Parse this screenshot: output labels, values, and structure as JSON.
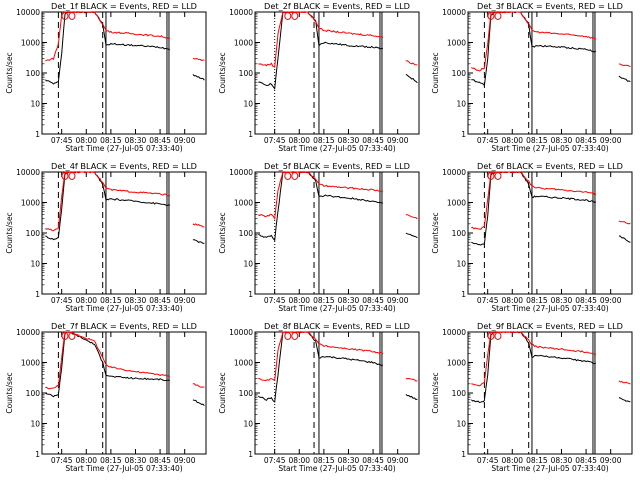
{
  "common": {
    "xlabel": "Start Time (27-Jul-05 07:33:40)",
    "ylabel": "Counts/sec",
    "xticks": [
      "07:45",
      "08:00",
      "08:15",
      "08:30",
      "08:45",
      "09:00"
    ],
    "yticks": [
      "10000",
      "1000",
      "100",
      "10",
      "1"
    ],
    "colors": {
      "events": "#000000",
      "lld": "#ff0000",
      "axes": "#000000"
    }
  },
  "panels": [
    {
      "title": "Det_1f BLACK = Events, RED = LLD"
    },
    {
      "title": "Det_2f BLACK = Events, RED = LLD"
    },
    {
      "title": "Det_3f BLACK = Events, RED = LLD"
    },
    {
      "title": "Det_4f BLACK = Events, RED = LLD"
    },
    {
      "title": "Det_5f BLACK = Events, RED = LLD"
    },
    {
      "title": "Det_6f BLACK = Events, RED = LLD"
    },
    {
      "title": "Det_7f BLACK = Events, RED = LLD"
    },
    {
      "title": "Det_8f BLACK = Events, RED = LLD"
    },
    {
      "title": "Det_9f BLACK = Events, RED = LLD"
    }
  ],
  "chart_data": [
    {
      "type": "line",
      "title": "Det_1f BLACK = Events, RED = LLD",
      "xlabel": "Start Time (27-Jul-05 07:33:40)",
      "ylabel": "Counts/sec",
      "yscale": "log",
      "ylim": [
        1,
        10000
      ],
      "xlim": [
        "07:33",
        "09:13"
      ],
      "series": [
        {
          "name": "Events",
          "color": "#000000",
          "x": [
            "07:35",
            "07:40",
            "07:43",
            "07:45",
            "07:47",
            "07:50",
            "08:05",
            "08:10",
            "08:12",
            "08:15",
            "08:30",
            "08:45",
            "08:51",
            "08:57",
            "09:05",
            "09:12"
          ],
          "values": [
            60,
            45,
            50,
            450,
            9000,
            10000,
            10000,
            4000,
            800,
            900,
            800,
            700,
            600,
            null,
            90,
            60
          ]
        },
        {
          "name": "LLD",
          "color": "#ff0000",
          "x": [
            "07:35",
            "07:40",
            "07:43",
            "07:45",
            "07:47",
            "07:50",
            "08:05",
            "08:10",
            "08:12",
            "08:15",
            "08:30",
            "08:45",
            "08:51",
            "08:57",
            "09:05",
            "09:12"
          ],
          "values": [
            250,
            300,
            900,
            8000,
            10000,
            10000,
            10000,
            4000,
            2500,
            2200,
            1900,
            1600,
            1400,
            null,
            300,
            250
          ]
        }
      ]
    },
    {
      "type": "line",
      "title": "Det_2f BLACK = Events, RED = LLD",
      "xlabel": "Start Time (27-Jul-05 07:33:40)",
      "ylabel": "Counts/sec",
      "yscale": "log",
      "ylim": [
        1,
        10000
      ],
      "xlim": [
        "07:33",
        "09:13"
      ],
      "series": [
        {
          "name": "Events",
          "color": "#000000",
          "x": [
            "07:35",
            "07:40",
            "07:43",
            "07:45",
            "07:47",
            "07:50",
            "08:05",
            "08:10",
            "08:12",
            "08:15",
            "08:30",
            "08:45",
            "08:51",
            "08:57",
            "09:05",
            "09:12"
          ],
          "values": [
            50,
            40,
            45,
            30,
            300,
            10000,
            10000,
            5000,
            800,
            1000,
            800,
            700,
            600,
            null,
            90,
            50
          ]
        },
        {
          "name": "LLD",
          "color": "#ff0000",
          "x": [
            "07:35",
            "07:40",
            "07:43",
            "07:45",
            "07:47",
            "07:50",
            "08:05",
            "08:10",
            "08:12",
            "08:15",
            "08:30",
            "08:45",
            "08:51",
            "08:57",
            "09:05",
            "09:12"
          ],
          "values": [
            200,
            180,
            200,
            150,
            2000,
            10000,
            10000,
            5000,
            3000,
            2500,
            2000,
            1700,
            1500,
            null,
            250,
            180
          ]
        }
      ]
    },
    {
      "type": "line",
      "title": "Det_3f BLACK = Events, RED = LLD",
      "xlabel": "Start Time (27-Jul-05 07:33:40)",
      "ylabel": "Counts/sec",
      "yscale": "log",
      "ylim": [
        1,
        10000
      ],
      "xlim": [
        "07:33",
        "09:13"
      ],
      "series": [
        {
          "name": "Events",
          "color": "#000000",
          "x": [
            "07:35",
            "07:40",
            "07:43",
            "07:45",
            "07:47",
            "07:50",
            "08:05",
            "08:10",
            "08:12",
            "08:15",
            "08:30",
            "08:45",
            "08:51",
            "08:57",
            "09:05",
            "09:12"
          ],
          "values": [
            60,
            50,
            40,
            300,
            8000,
            10000,
            10000,
            4000,
            700,
            800,
            700,
            600,
            500,
            null,
            80,
            50
          ]
        },
        {
          "name": "LLD",
          "color": "#ff0000",
          "x": [
            "07:35",
            "07:40",
            "07:43",
            "07:45",
            "07:47",
            "07:50",
            "08:05",
            "08:10",
            "08:12",
            "08:15",
            "08:30",
            "08:45",
            "08:51",
            "08:57",
            "09:05",
            "09:12"
          ],
          "values": [
            150,
            120,
            150,
            900,
            10000,
            10000,
            10000,
            4000,
            2500,
            2200,
            1900,
            1600,
            1300,
            null,
            200,
            160
          ]
        }
      ]
    },
    {
      "type": "line",
      "title": "Det_4f BLACK = Events, RED = LLD",
      "xlabel": "Start Time (27-Jul-05 07:33:40)",
      "ylabel": "Counts/sec",
      "yscale": "log",
      "ylim": [
        1,
        10000
      ],
      "xlim": [
        "07:33",
        "09:13"
      ],
      "series": [
        {
          "name": "Events",
          "color": "#000000",
          "x": [
            "07:35",
            "07:40",
            "07:43",
            "07:45",
            "07:47",
            "07:50",
            "08:05",
            "08:10",
            "08:12",
            "08:15",
            "08:30",
            "08:45",
            "08:51",
            "08:57",
            "09:05",
            "09:12"
          ],
          "values": [
            80,
            60,
            70,
            600,
            9000,
            10000,
            10000,
            4000,
            1200,
            1300,
            1100,
            900,
            800,
            null,
            60,
            45
          ]
        },
        {
          "name": "LLD",
          "color": "#ff0000",
          "x": [
            "07:35",
            "07:40",
            "07:43",
            "07:45",
            "07:47",
            "07:50",
            "08:05",
            "08:10",
            "08:12",
            "08:15",
            "08:30",
            "08:45",
            "08:51",
            "08:57",
            "09:05",
            "09:12"
          ],
          "values": [
            140,
            120,
            150,
            1500,
            10000,
            10000,
            10000,
            4500,
            3000,
            2600,
            2200,
            1900,
            1700,
            null,
            200,
            160
          ]
        }
      ]
    },
    {
      "type": "line",
      "title": "Det_5f BLACK = Events, RED = LLD",
      "xlabel": "Start Time (27-Jul-05 07:33:40)",
      "ylabel": "Counts/sec",
      "yscale": "log",
      "ylim": [
        1,
        10000
      ],
      "xlim": [
        "07:33",
        "09:13"
      ],
      "series": [
        {
          "name": "Events",
          "color": "#000000",
          "x": [
            "07:35",
            "07:40",
            "07:43",
            "07:45",
            "07:47",
            "07:50",
            "08:05",
            "08:10",
            "08:12",
            "08:15",
            "08:30",
            "08:45",
            "08:51",
            "08:57",
            "09:05",
            "09:12"
          ],
          "values": [
            90,
            70,
            80,
            60,
            500,
            10000,
            10000,
            5000,
            1500,
            1700,
            1400,
            1100,
            900,
            null,
            100,
            70
          ]
        },
        {
          "name": "LLD",
          "color": "#ff0000",
          "x": [
            "07:35",
            "07:40",
            "07:43",
            "07:45",
            "07:47",
            "07:50",
            "08:05",
            "08:10",
            "08:12",
            "08:15",
            "08:30",
            "08:45",
            "08:51",
            "08:57",
            "09:05",
            "09:12"
          ],
          "values": [
            400,
            350,
            400,
            300,
            2500,
            10000,
            10000,
            6000,
            4000,
            3500,
            3000,
            2600,
            2300,
            null,
            400,
            300
          ]
        }
      ]
    },
    {
      "type": "line",
      "title": "Det_6f BLACK = Events, RED = LLD",
      "xlabel": "Start Time (27-Jul-05 07:33:40)",
      "ylabel": "Counts/sec",
      "yscale": "log",
      "ylim": [
        1,
        10000
      ],
      "xlim": [
        "07:33",
        "09:13"
      ],
      "series": [
        {
          "name": "Events",
          "color": "#000000",
          "x": [
            "07:35",
            "07:40",
            "07:43",
            "07:45",
            "07:47",
            "07:50",
            "08:05",
            "08:10",
            "08:12",
            "08:15",
            "08:30",
            "08:45",
            "08:51",
            "08:57",
            "09:05",
            "09:12"
          ],
          "values": [
            50,
            40,
            45,
            350,
            8000,
            10000,
            10000,
            4000,
            1500,
            1600,
            1400,
            1200,
            1000,
            null,
            80,
            50
          ]
        },
        {
          "name": "LLD",
          "color": "#ff0000",
          "x": [
            "07:35",
            "07:40",
            "07:43",
            "07:45",
            "07:47",
            "07:50",
            "08:05",
            "08:10",
            "08:12",
            "08:15",
            "08:30",
            "08:45",
            "08:51",
            "08:57",
            "09:05",
            "09:12"
          ],
          "values": [
            150,
            130,
            160,
            1200,
            10000,
            10000,
            10000,
            5000,
            3500,
            3000,
            2600,
            2200,
            1900,
            null,
            250,
            200
          ]
        }
      ]
    },
    {
      "type": "line",
      "title": "Det_7f BLACK = Events, RED = LLD",
      "xlabel": "Start Time (27-Jul-05 07:33:40)",
      "ylabel": "Counts/sec",
      "yscale": "log",
      "ylim": [
        1,
        10000
      ],
      "xlim": [
        "07:33",
        "09:13"
      ],
      "series": [
        {
          "name": "Events",
          "color": "#000000",
          "x": [
            "07:35",
            "07:40",
            "07:43",
            "07:45",
            "07:47",
            "07:50",
            "08:05",
            "08:10",
            "08:12",
            "08:15",
            "08:30",
            "08:45",
            "08:51",
            "08:57",
            "09:05",
            "09:12"
          ],
          "values": [
            100,
            80,
            90,
            700,
            9000,
            10000,
            4000,
            1000,
            400,
            350,
            300,
            280,
            250,
            null,
            60,
            40
          ]
        },
        {
          "name": "LLD",
          "color": "#ff0000",
          "x": [
            "07:35",
            "07:40",
            "07:43",
            "07:45",
            "07:47",
            "07:50",
            "08:05",
            "08:10",
            "08:12",
            "08:15",
            "08:30",
            "08:45",
            "08:51",
            "08:57",
            "09:05",
            "09:12"
          ],
          "values": [
            150,
            140,
            180,
            1500,
            10000,
            10000,
            5000,
            1500,
            800,
            700,
            500,
            400,
            350,
            null,
            200,
            150
          ]
        }
      ]
    },
    {
      "type": "line",
      "title": "Det_8f BLACK = Events, RED = LLD",
      "xlabel": "Start Time (27-Jul-05 07:33:40)",
      "ylabel": "Counts/sec",
      "yscale": "log",
      "ylim": [
        1,
        10000
      ],
      "xlim": [
        "07:33",
        "09:13"
      ],
      "series": [
        {
          "name": "Events",
          "color": "#000000",
          "x": [
            "07:35",
            "07:40",
            "07:43",
            "07:45",
            "07:47",
            "07:50",
            "08:05",
            "08:10",
            "08:12",
            "08:15",
            "08:30",
            "08:45",
            "08:51",
            "08:57",
            "09:05",
            "09:12"
          ],
          "values": [
            80,
            60,
            70,
            50,
            400,
            10000,
            10000,
            5000,
            1400,
            1600,
            1300,
            1000,
            800,
            null,
            90,
            60
          ]
        },
        {
          "name": "LLD",
          "color": "#ff0000",
          "x": [
            "07:35",
            "07:40",
            "07:43",
            "07:45",
            "07:47",
            "07:50",
            "08:05",
            "08:10",
            "08:12",
            "08:15",
            "08:30",
            "08:45",
            "08:51",
            "08:57",
            "09:05",
            "09:12"
          ],
          "values": [
            300,
            250,
            300,
            250,
            2500,
            10000,
            10000,
            6000,
            4000,
            3500,
            2800,
            2300,
            2000,
            null,
            300,
            250
          ]
        }
      ]
    },
    {
      "type": "line",
      "title": "Det_9f BLACK = Events, RED = LLD",
      "xlabel": "Start Time (27-Jul-05 07:33:40)",
      "ylabel": "Counts/sec",
      "yscale": "log",
      "ylim": [
        1,
        10000
      ],
      "xlim": [
        "07:33",
        "09:13"
      ],
      "series": [
        {
          "name": "Events",
          "color": "#000000",
          "x": [
            "07:35",
            "07:40",
            "07:43",
            "07:45",
            "07:47",
            "07:50",
            "08:05",
            "08:10",
            "08:12",
            "08:15",
            "08:30",
            "08:45",
            "08:51",
            "08:57",
            "09:05",
            "09:12"
          ],
          "values": [
            60,
            50,
            55,
            400,
            8000,
            10000,
            10000,
            4500,
            1500,
            1700,
            1400,
            1100,
            900,
            null,
            70,
            50
          ]
        },
        {
          "name": "LLD",
          "color": "#ff0000",
          "x": [
            "07:35",
            "07:40",
            "07:43",
            "07:45",
            "07:47",
            "07:50",
            "08:05",
            "08:10",
            "08:12",
            "08:15",
            "08:30",
            "08:45",
            "08:51",
            "08:57",
            "09:05",
            "09:12"
          ],
          "values": [
            200,
            180,
            220,
            1800,
            10000,
            10000,
            10000,
            5500,
            3800,
            3300,
            2700,
            2200,
            1900,
            null,
            250,
            200
          ]
        }
      ]
    }
  ]
}
